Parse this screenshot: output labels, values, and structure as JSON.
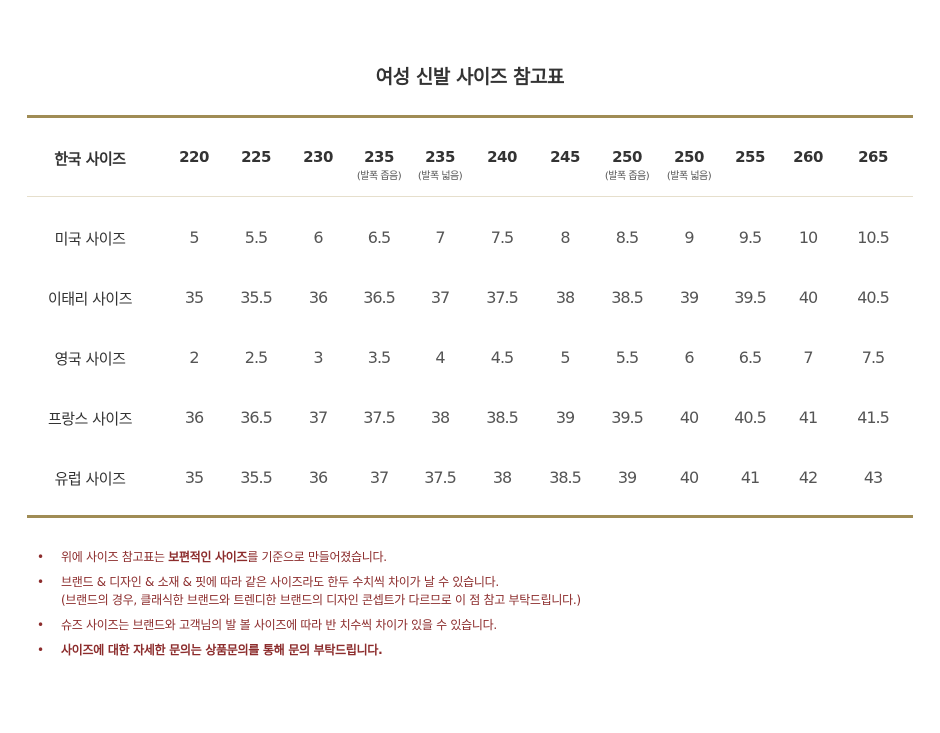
{
  "title": "여성 신발 사이즈 참고표",
  "table": {
    "header_label": "한국 사이즈",
    "columns": [
      {
        "size": "220",
        "sub": ""
      },
      {
        "size": "225",
        "sub": ""
      },
      {
        "size": "230",
        "sub": ""
      },
      {
        "size": "235",
        "sub": "(발폭 좁음)"
      },
      {
        "size": "235",
        "sub": "(발폭 넓음)"
      },
      {
        "size": "240",
        "sub": ""
      },
      {
        "size": "245",
        "sub": ""
      },
      {
        "size": "250",
        "sub": "(발폭 좁음)"
      },
      {
        "size": "250",
        "sub": "(발폭 넓음)"
      },
      {
        "size": "255",
        "sub": ""
      },
      {
        "size": "260",
        "sub": ""
      },
      {
        "size": "265",
        "sub": ""
      }
    ],
    "rows": [
      {
        "label": "미국 사이즈",
        "values": [
          "5",
          "5.5",
          "6",
          "6.5",
          "7",
          "7.5",
          "8",
          "8.5",
          "9",
          "9.5",
          "10",
          "10.5"
        ]
      },
      {
        "label": "이태리 사이즈",
        "values": [
          "35",
          "35.5",
          "36",
          "36.5",
          "37",
          "37.5",
          "38",
          "38.5",
          "39",
          "39.5",
          "40",
          "40.5"
        ]
      },
      {
        "label": "영국 사이즈",
        "values": [
          "2",
          "2.5",
          "3",
          "3.5",
          "4",
          "4.5",
          "5",
          "5.5",
          "6",
          "6.5",
          "7",
          "7.5"
        ]
      },
      {
        "label": "프랑스 사이즈",
        "values": [
          "36",
          "36.5",
          "37",
          "37.5",
          "38",
          "38.5",
          "39",
          "39.5",
          "40",
          "40.5",
          "41",
          "41.5"
        ]
      },
      {
        "label": "유럽 사이즈",
        "values": [
          "35",
          "35.5",
          "36",
          "37",
          "37.5",
          "38",
          "38.5",
          "39",
          "40",
          "41",
          "42",
          "43"
        ]
      }
    ]
  },
  "notes": {
    "bullet": "•",
    "n1_pre": "위에 사이즈 참고표는 ",
    "n1_bold": "보편적인 사이즈",
    "n1_post": "를 기준으로 만들어졌습니다.",
    "n2_line1": "브랜드 & 디자인 & 소재 & 핏에 따라 같은 사이즈라도 한두 수치씩 차이가 날 수 있습니다.",
    "n2_line2": "(브랜드의 경우, 클래식한 브랜드와 트렌디한 브랜드의 디자인 콘셉트가 다르므로 이 점 참고 부탁드립니다.)",
    "n3": "슈즈 사이즈는 브랜드와 고객님의 발 볼 사이즈에 따라 반 치수씩 차이가 있을 수 있습니다.",
    "n4": "사이즈에 대한 자세한 문의는 상품문의를 통해 문의 부탁드립니다."
  },
  "colors": {
    "rule": "#a08c55",
    "note_text": "#8c2c2c"
  }
}
